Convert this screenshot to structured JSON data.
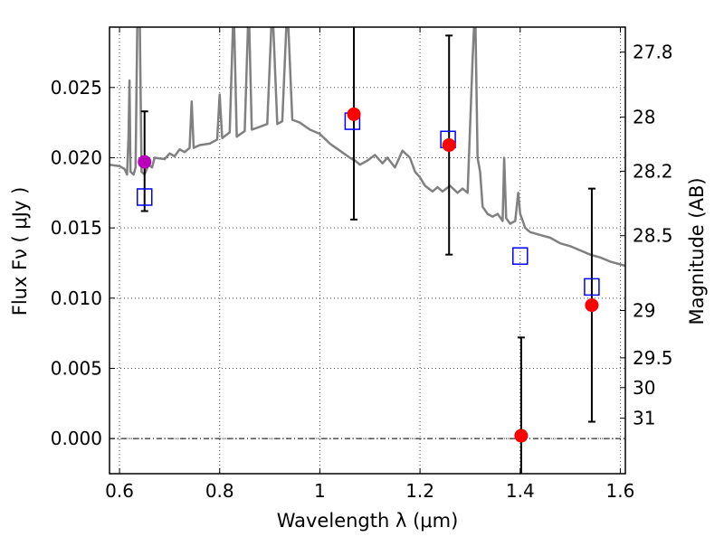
{
  "chart_data": {
    "type": "scatter",
    "title": "",
    "xlabel": "Wavelength  λ (μm)",
    "ylabel": "Flux  Fν  ( μJy )",
    "y2label": "Magnitude (AB)",
    "xlim": [
      0.58,
      1.61
    ],
    "ylim": [
      -0.0025,
      0.0293
    ],
    "grid": true,
    "x_ticks": [
      {
        "value": 0.6,
        "label": "0.6"
      },
      {
        "value": 0.8,
        "label": "0.8"
      },
      {
        "value": 1.0,
        "label": "1"
      },
      {
        "value": 1.2,
        "label": "1.2"
      },
      {
        "value": 1.4,
        "label": "1.4"
      },
      {
        "value": 1.6,
        "label": "1.6"
      }
    ],
    "y_ticks": [
      {
        "value": 0.0,
        "label": "0.000"
      },
      {
        "value": 0.005,
        "label": "0.005"
      },
      {
        "value": 0.01,
        "label": "0.010"
      },
      {
        "value": 0.015,
        "label": "0.015"
      },
      {
        "value": 0.02,
        "label": "0.020"
      },
      {
        "value": 0.025,
        "label": "0.025"
      }
    ],
    "y2_ticks": [
      {
        "flux": 0.02752,
        "label": "27.8"
      },
      {
        "flux": 0.02289,
        "label": "28"
      },
      {
        "flux": 0.01904,
        "label": "28.2"
      },
      {
        "flux": 0.01445,
        "label": "28.5"
      },
      {
        "flux": 0.00912,
        "label": "29"
      },
      {
        "flux": 0.00575,
        "label": "29.5"
      },
      {
        "flux": 0.00363,
        "label": "30"
      },
      {
        "flux": 0.00145,
        "label": "31"
      }
    ],
    "zero_line": 0.0,
    "colors": {
      "spectrum": "#808080",
      "observed": "#ff0000",
      "highlight": "#bb00bb",
      "model": "#0000ff",
      "errorbar": "#000000",
      "grid": "#555555"
    },
    "series": [
      {
        "kind": "line",
        "points": [
          [
            0.58,
            0.0195
          ],
          [
            0.6,
            0.0194
          ],
          [
            0.61,
            0.0192
          ],
          [
            0.615,
            0.0188
          ],
          [
            0.618,
            0.0215
          ],
          [
            0.62,
            0.0255
          ],
          [
            0.622,
            0.019
          ],
          [
            0.628,
            0.0188
          ],
          [
            0.632,
            0.0193
          ],
          [
            0.636,
            0.031
          ],
          [
            0.64,
            0.031
          ],
          [
            0.644,
            0.019
          ],
          [
            0.65,
            0.0188
          ],
          [
            0.658,
            0.0195
          ],
          [
            0.665,
            0.0193
          ],
          [
            0.67,
            0.02
          ],
          [
            0.69,
            0.0199
          ],
          [
            0.7,
            0.0203
          ],
          [
            0.71,
            0.0201
          ],
          [
            0.72,
            0.0206
          ],
          [
            0.73,
            0.0204
          ],
          [
            0.74,
            0.0207
          ],
          [
            0.744,
            0.024
          ],
          [
            0.748,
            0.0207
          ],
          [
            0.76,
            0.0209
          ],
          [
            0.78,
            0.021
          ],
          [
            0.795,
            0.0213
          ],
          [
            0.8,
            0.0245
          ],
          [
            0.805,
            0.0214
          ],
          [
            0.82,
            0.0218
          ],
          [
            0.828,
            0.031
          ],
          [
            0.834,
            0.0215
          ],
          [
            0.85,
            0.0219
          ],
          [
            0.858,
            0.031
          ],
          [
            0.864,
            0.022
          ],
          [
            0.88,
            0.0222
          ],
          [
            0.895,
            0.0224
          ],
          [
            0.905,
            0.031
          ],
          [
            0.915,
            0.0224
          ],
          [
            0.925,
            0.0226
          ],
          [
            0.935,
            0.031
          ],
          [
            0.945,
            0.0227
          ],
          [
            0.96,
            0.0225
          ],
          [
            0.98,
            0.022
          ],
          [
            1.0,
            0.0217
          ],
          [
            1.02,
            0.021
          ],
          [
            1.04,
            0.0205
          ],
          [
            1.06,
            0.02
          ],
          [
            1.07,
            0.0198
          ],
          [
            1.08,
            0.0195
          ],
          [
            1.095,
            0.0198
          ],
          [
            1.11,
            0.0202
          ],
          [
            1.125,
            0.0196
          ],
          [
            1.135,
            0.02
          ],
          [
            1.15,
            0.0193
          ],
          [
            1.165,
            0.0205
          ],
          [
            1.18,
            0.02
          ],
          [
            1.19,
            0.019
          ],
          [
            1.2,
            0.0186
          ],
          [
            1.21,
            0.018
          ],
          [
            1.225,
            0.0176
          ],
          [
            1.235,
            0.0179
          ],
          [
            1.245,
            0.0176
          ],
          [
            1.26,
            0.018
          ],
          [
            1.275,
            0.0175
          ],
          [
            1.285,
            0.0178
          ],
          [
            1.295,
            0.0175
          ],
          [
            1.305,
            0.027
          ],
          [
            1.31,
            0.031
          ],
          [
            1.315,
            0.02
          ],
          [
            1.32,
            0.019
          ],
          [
            1.325,
            0.0165
          ],
          [
            1.335,
            0.016
          ],
          [
            1.345,
            0.0158
          ],
          [
            1.355,
            0.016
          ],
          [
            1.365,
            0.0155
          ],
          [
            1.368,
            0.02
          ],
          [
            1.372,
            0.0157
          ],
          [
            1.38,
            0.0153
          ],
          [
            1.39,
            0.0155
          ],
          [
            1.396,
            0.0175
          ],
          [
            1.4,
            0.016
          ],
          [
            1.41,
            0.015
          ],
          [
            1.42,
            0.0147
          ],
          [
            1.44,
            0.0145
          ],
          [
            1.46,
            0.0143
          ],
          [
            1.48,
            0.0139
          ],
          [
            1.5,
            0.0137
          ],
          [
            1.52,
            0.0134
          ],
          [
            1.54,
            0.0131
          ],
          [
            1.56,
            0.0129
          ],
          [
            1.58,
            0.0126
          ],
          [
            1.6,
            0.0124
          ],
          [
            1.61,
            0.0123
          ]
        ]
      },
      {
        "kind": "points-with-errors",
        "marker": "circle",
        "points": [
          {
            "x": 0.65,
            "y": 0.0197,
            "err_lo": 0.0035,
            "err_hi": 0.0036,
            "highlight": true
          },
          {
            "x": 1.068,
            "y": 0.0231,
            "err_lo": 0.0075,
            "err_hi": 0.0087,
            "highlight": false
          },
          {
            "x": 1.258,
            "y": 0.0209,
            "err_lo": 0.0078,
            "err_hi": 0.0078,
            "highlight": false
          },
          {
            "x": 1.402,
            "y": 0.0002,
            "err_lo": 0.0041,
            "err_hi": 0.007,
            "highlight": false
          },
          {
            "x": 1.543,
            "y": 0.0095,
            "err_lo": 0.0083,
            "err_hi": 0.0083,
            "highlight": false
          }
        ]
      },
      {
        "kind": "points",
        "marker": "square",
        "points": [
          {
            "x": 0.65,
            "y": 0.0172
          },
          {
            "x": 1.065,
            "y": 0.0226
          },
          {
            "x": 1.256,
            "y": 0.0213
          },
          {
            "x": 1.4,
            "y": 0.013
          },
          {
            "x": 1.543,
            "y": 0.0108
          }
        ]
      }
    ]
  }
}
